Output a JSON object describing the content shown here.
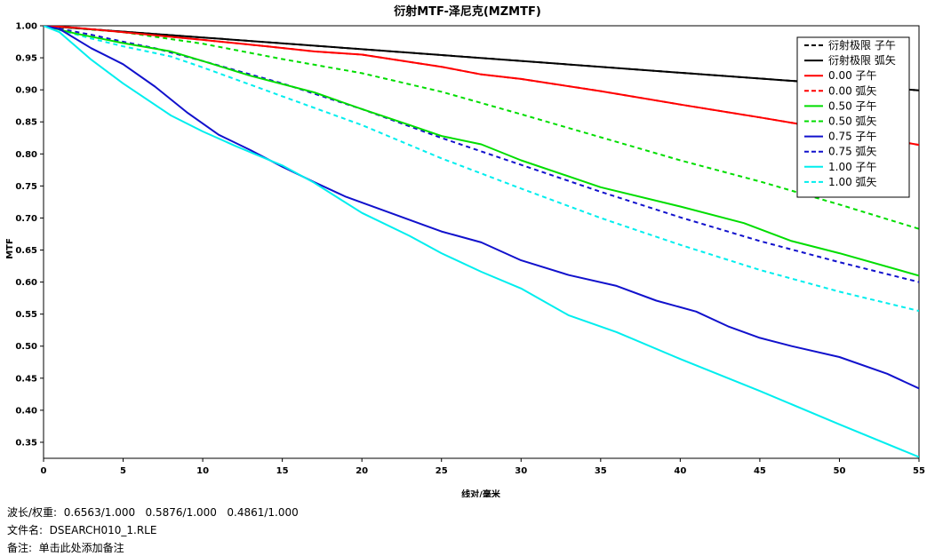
{
  "chart_data": {
    "type": "line",
    "title": "衍射MTF-泽尼克(MZMTF)",
    "xlabel": "线对/毫米",
    "ylabel": "MTF",
    "xlim": [
      0,
      55
    ],
    "ylim": [
      0.325,
      1.0
    ],
    "xticks": [
      "0",
      "5",
      "10",
      "15",
      "20",
      "25",
      "30",
      "35",
      "40",
      "45",
      "50",
      "55"
    ],
    "yticks": [
      "1.00",
      "0.95",
      "0.90",
      "0.85",
      "0.80",
      "0.75",
      "0.70",
      "0.65",
      "0.60",
      "0.55",
      "0.50",
      "0.45",
      "0.40",
      "0.35"
    ],
    "legend_position": "top-right",
    "series": [
      {
        "name": "衍射极限 子午",
        "color": "#000000",
        "dashed": true,
        "x": [
          0,
          10,
          20,
          30,
          40,
          50,
          55
        ],
        "y": [
          1.0,
          0.9817,
          0.9634,
          0.9451,
          0.9267,
          0.9086,
          0.8993
        ]
      },
      {
        "name": "衍射极限 弧矢",
        "color": "#000000",
        "dashed": false,
        "x": [
          0,
          10,
          20,
          30,
          40,
          50,
          55
        ],
        "y": [
          1.0,
          0.9817,
          0.9634,
          0.9451,
          0.9267,
          0.9086,
          0.8993
        ]
      },
      {
        "name": "0.00 子午",
        "color": "#ff0000",
        "dashed": false,
        "x": [
          0,
          2,
          5,
          10,
          14,
          17,
          20,
          25,
          27.5,
          30,
          35,
          40,
          45,
          50,
          55
        ],
        "y": [
          1.0,
          0.997,
          0.99,
          0.978,
          0.968,
          0.96,
          0.955,
          0.936,
          0.924,
          0.917,
          0.898,
          0.877,
          0.857,
          0.836,
          0.814
        ]
      },
      {
        "name": "0.00 弧矢",
        "color": "#ff0000",
        "dashed": true,
        "x": [
          0,
          2,
          5,
          10,
          14,
          17,
          20,
          25,
          27.5,
          30,
          35,
          40,
          45,
          50,
          55
        ],
        "y": [
          1.0,
          0.997,
          0.99,
          0.978,
          0.968,
          0.96,
          0.955,
          0.936,
          0.924,
          0.917,
          0.898,
          0.877,
          0.857,
          0.836,
          0.814
        ]
      },
      {
        "name": "0.50 子午",
        "color": "#00dd00",
        "dashed": false,
        "x": [
          0,
          2,
          5,
          8,
          10,
          13,
          17,
          20,
          23,
          25,
          27.5,
          30,
          35,
          40,
          44,
          47,
          50,
          55
        ],
        "y": [
          1.0,
          0.988,
          0.973,
          0.96,
          0.945,
          0.922,
          0.896,
          0.87,
          0.845,
          0.828,
          0.815,
          0.79,
          0.748,
          0.718,
          0.692,
          0.664,
          0.645,
          0.61
        ]
      },
      {
        "name": "0.50 弧矢",
        "color": "#00dd00",
        "dashed": true,
        "x": [
          0,
          5,
          10,
          15,
          20,
          25,
          30,
          35,
          40,
          45,
          50,
          55
        ],
        "y": [
          1.0,
          0.99,
          0.972,
          0.948,
          0.926,
          0.897,
          0.862,
          0.826,
          0.79,
          0.757,
          0.721,
          0.683
        ]
      },
      {
        "name": "0.75 子午",
        "color": "#1111cc",
        "dashed": false,
        "x": [
          0,
          1,
          3,
          5,
          7,
          9,
          11,
          13,
          15,
          17,
          19,
          22,
          25,
          27.5,
          30,
          33,
          36,
          38.5,
          41,
          43,
          45,
          47,
          50,
          53,
          55
        ],
        "y": [
          1.0,
          0.995,
          0.965,
          0.94,
          0.905,
          0.865,
          0.83,
          0.806,
          0.78,
          0.756,
          0.733,
          0.706,
          0.679,
          0.662,
          0.634,
          0.611,
          0.594,
          0.571,
          0.554,
          0.531,
          0.513,
          0.5,
          0.483,
          0.457,
          0.434
        ]
      },
      {
        "name": "0.75 弧矢",
        "color": "#1111cc",
        "dashed": true,
        "x": [
          0,
          3,
          5,
          7,
          10,
          15,
          20,
          25,
          30,
          35,
          40,
          45,
          50,
          55
        ],
        "y": [
          1.0,
          0.986,
          0.975,
          0.965,
          0.945,
          0.91,
          0.87,
          0.825,
          0.783,
          0.741,
          0.701,
          0.664,
          0.631,
          0.6
        ]
      },
      {
        "name": "1.00 子午",
        "color": "#00eeee",
        "dashed": false,
        "x": [
          0,
          1,
          3,
          5,
          8,
          10,
          12,
          15,
          17,
          20,
          23,
          25,
          27.5,
          30,
          33,
          36,
          40,
          45,
          50,
          55
        ],
        "y": [
          1.0,
          0.99,
          0.947,
          0.91,
          0.86,
          0.835,
          0.813,
          0.782,
          0.755,
          0.708,
          0.672,
          0.645,
          0.616,
          0.59,
          0.548,
          0.522,
          0.48,
          0.43,
          0.378,
          0.327
        ]
      },
      {
        "name": "1.00 弧矢",
        "color": "#00eeee",
        "dashed": true,
        "x": [
          0,
          3,
          5,
          8,
          10,
          15,
          20,
          25,
          30,
          35,
          40,
          45,
          50,
          55
        ],
        "y": [
          1.0,
          0.98,
          0.968,
          0.952,
          0.935,
          0.89,
          0.845,
          0.793,
          0.746,
          0.7,
          0.658,
          0.619,
          0.585,
          0.555
        ]
      }
    ]
  },
  "info": {
    "line1": "波长/权重:  0.6563/1.000   0.5876/1.000   0.4861/1.000",
    "line2": "文件名:  DSEARCH010_1.RLE",
    "line3": "备注:  单击此处添加备注"
  }
}
